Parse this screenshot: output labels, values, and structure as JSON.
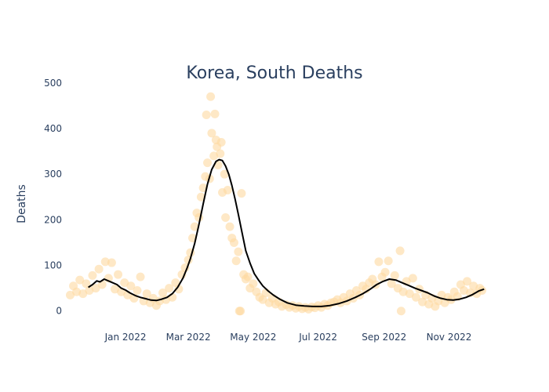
{
  "chart_data": {
    "type": "scatter",
    "title": "Korea, South Deaths",
    "xlabel": "",
    "ylabel": "Deaths",
    "x_range": [
      "2021-11-03",
      "2022-12-06"
    ],
    "ylim": [
      -40,
      510
    ],
    "grid": false,
    "legend": "none",
    "y_ticks": [
      0,
      100,
      200,
      300,
      400,
      500
    ],
    "x_ticks": [
      {
        "date": "2022-01-01",
        "label": "Jan 2022"
      },
      {
        "date": "2022-03-01",
        "label": "Mar 2022"
      },
      {
        "date": "2022-05-01",
        "label": "May 2022"
      },
      {
        "date": "2022-07-01",
        "label": "Jul 2022"
      },
      {
        "date": "2022-09-01",
        "label": "Sep 2022"
      },
      {
        "date": "2022-11-01",
        "label": "Nov 2022"
      }
    ],
    "colors": {
      "points": "#fdd9a0",
      "line": "#000000",
      "text": "#2a3f5f"
    },
    "series": [
      {
        "kind": "daily",
        "points": [
          [
            "2021-11-10",
            35
          ],
          [
            "2021-11-13",
            55
          ],
          [
            "2021-11-16",
            42
          ],
          [
            "2021-11-19",
            68
          ],
          [
            "2021-11-22",
            38
          ],
          [
            "2021-11-25",
            60
          ],
          [
            "2021-11-28",
            45
          ],
          [
            "2021-12-01",
            78
          ],
          [
            "2021-12-04",
            50
          ],
          [
            "2021-12-07",
            92
          ],
          [
            "2021-12-10",
            58
          ],
          [
            "2021-12-13",
            108
          ],
          [
            "2021-12-16",
            72
          ],
          [
            "2021-12-19",
            106
          ],
          [
            "2021-12-22",
            48
          ],
          [
            "2021-12-25",
            80
          ],
          [
            "2021-12-28",
            42
          ],
          [
            "2021-12-31",
            62
          ],
          [
            "2022-01-03",
            35
          ],
          [
            "2022-01-06",
            55
          ],
          [
            "2022-01-09",
            28
          ],
          [
            "2022-01-12",
            45
          ],
          [
            "2022-01-15",
            75
          ],
          [
            "2022-01-18",
            22
          ],
          [
            "2022-01-21",
            38
          ],
          [
            "2022-01-24",
            18
          ],
          [
            "2022-01-27",
            28
          ],
          [
            "2022-01-30",
            12
          ],
          [
            "2022-02-02",
            22
          ],
          [
            "2022-02-05",
            40
          ],
          [
            "2022-02-08",
            25
          ],
          [
            "2022-02-11",
            50
          ],
          [
            "2022-02-14",
            30
          ],
          [
            "2022-02-17",
            62
          ],
          [
            "2022-02-20",
            48
          ],
          [
            "2022-02-23",
            80
          ],
          [
            "2022-02-26",
            95
          ],
          [
            "2022-03-01",
            112
          ],
          [
            "2022-03-03",
            128
          ],
          [
            "2022-03-05",
            160
          ],
          [
            "2022-03-07",
            185
          ],
          [
            "2022-03-09",
            215
          ],
          [
            "2022-03-11",
            205
          ],
          [
            "2022-03-13",
            250
          ],
          [
            "2022-03-15",
            270
          ],
          [
            "2022-03-17",
            295
          ],
          [
            "2022-03-18",
            430
          ],
          [
            "2022-03-19",
            325
          ],
          [
            "2022-03-21",
            290
          ],
          [
            "2022-03-22",
            470
          ],
          [
            "2022-03-23",
            390
          ],
          [
            "2022-03-25",
            340
          ],
          [
            "2022-03-26",
            432
          ],
          [
            "2022-03-27",
            375
          ],
          [
            "2022-03-28",
            360
          ],
          [
            "2022-03-29",
            320
          ],
          [
            "2022-03-31",
            345
          ],
          [
            "2022-04-01",
            370
          ],
          [
            "2022-04-02",
            260
          ],
          [
            "2022-04-04",
            300
          ],
          [
            "2022-04-05",
            205
          ],
          [
            "2022-04-07",
            265
          ],
          [
            "2022-04-09",
            185
          ],
          [
            "2022-04-11",
            160
          ],
          [
            "2022-04-13",
            150
          ],
          [
            "2022-04-15",
            110
          ],
          [
            "2022-04-17",
            130
          ],
          [
            "2022-04-18",
            0
          ],
          [
            "2022-04-19",
            0
          ],
          [
            "2022-04-20",
            258
          ],
          [
            "2022-04-22",
            80
          ],
          [
            "2022-04-24",
            70
          ],
          [
            "2022-04-26",
            75
          ],
          [
            "2022-04-28",
            50
          ],
          [
            "2022-05-01",
            60
          ],
          [
            "2022-05-04",
            42
          ],
          [
            "2022-05-07",
            30
          ],
          [
            "2022-05-10",
            25
          ],
          [
            "2022-05-13",
            40
          ],
          [
            "2022-05-16",
            18
          ],
          [
            "2022-05-19",
            28
          ],
          [
            "2022-05-22",
            15
          ],
          [
            "2022-05-25",
            20
          ],
          [
            "2022-05-28",
            10
          ],
          [
            "2022-06-01",
            14
          ],
          [
            "2022-06-04",
            8
          ],
          [
            "2022-06-07",
            12
          ],
          [
            "2022-06-10",
            6
          ],
          [
            "2022-06-13",
            10
          ],
          [
            "2022-06-16",
            5
          ],
          [
            "2022-06-19",
            8
          ],
          [
            "2022-06-22",
            4
          ],
          [
            "2022-06-25",
            9
          ],
          [
            "2022-06-28",
            7
          ],
          [
            "2022-07-01",
            12
          ],
          [
            "2022-07-04",
            8
          ],
          [
            "2022-07-07",
            15
          ],
          [
            "2022-07-10",
            12
          ],
          [
            "2022-07-13",
            18
          ],
          [
            "2022-07-16",
            20
          ],
          [
            "2022-07-19",
            25
          ],
          [
            "2022-07-22",
            18
          ],
          [
            "2022-07-25",
            30
          ],
          [
            "2022-07-28",
            22
          ],
          [
            "2022-07-31",
            38
          ],
          [
            "2022-08-03",
            28
          ],
          [
            "2022-08-06",
            45
          ],
          [
            "2022-08-09",
            35
          ],
          [
            "2022-08-12",
            55
          ],
          [
            "2022-08-15",
            48
          ],
          [
            "2022-08-18",
            62
          ],
          [
            "2022-08-21",
            70
          ],
          [
            "2022-08-24",
            58
          ],
          [
            "2022-08-27",
            108
          ],
          [
            "2022-08-30",
            75
          ],
          [
            "2022-09-02",
            85
          ],
          [
            "2022-09-05",
            110
          ],
          [
            "2022-09-08",
            60
          ],
          [
            "2022-09-11",
            78
          ],
          [
            "2022-09-14",
            50
          ],
          [
            "2022-09-16",
            132
          ],
          [
            "2022-09-17",
            0
          ],
          [
            "2022-09-19",
            42
          ],
          [
            "2022-09-22",
            65
          ],
          [
            "2022-09-25",
            38
          ],
          [
            "2022-09-28",
            72
          ],
          [
            "2022-10-01",
            30
          ],
          [
            "2022-10-04",
            48
          ],
          [
            "2022-10-07",
            20
          ],
          [
            "2022-10-10",
            35
          ],
          [
            "2022-10-13",
            15
          ],
          [
            "2022-10-16",
            28
          ],
          [
            "2022-10-19",
            10
          ],
          [
            "2022-10-22",
            22
          ],
          [
            "2022-10-25",
            35
          ],
          [
            "2022-10-28",
            18
          ],
          [
            "2022-10-31",
            30
          ],
          [
            "2022-11-03",
            25
          ],
          [
            "2022-11-06",
            42
          ],
          [
            "2022-11-09",
            32
          ],
          [
            "2022-11-12",
            58
          ],
          [
            "2022-11-15",
            45
          ],
          [
            "2022-11-18",
            65
          ],
          [
            "2022-11-21",
            40
          ],
          [
            "2022-11-24",
            55
          ],
          [
            "2022-11-27",
            38
          ],
          [
            "2022-11-30",
            50
          ],
          [
            "2022-12-02",
            45
          ]
        ]
      },
      {
        "kind": "7-day average",
        "points": [
          [
            "2021-11-27",
            52
          ],
          [
            "2021-12-01",
            58
          ],
          [
            "2021-12-05",
            66
          ],
          [
            "2021-12-08",
            64
          ],
          [
            "2021-12-12",
            70
          ],
          [
            "2021-12-16",
            66
          ],
          [
            "2021-12-20",
            62
          ],
          [
            "2021-12-24",
            58
          ],
          [
            "2021-12-28",
            50
          ],
          [
            "2022-01-01",
            46
          ],
          [
            "2022-01-05",
            40
          ],
          [
            "2022-01-10",
            34
          ],
          [
            "2022-01-15",
            30
          ],
          [
            "2022-01-20",
            27
          ],
          [
            "2022-01-25",
            24
          ],
          [
            "2022-01-30",
            23
          ],
          [
            "2022-02-04",
            26
          ],
          [
            "2022-02-09",
            30
          ],
          [
            "2022-02-14",
            38
          ],
          [
            "2022-02-19",
            52
          ],
          [
            "2022-02-24",
            72
          ],
          [
            "2022-02-28",
            95
          ],
          [
            "2022-03-03",
            115
          ],
          [
            "2022-03-07",
            148
          ],
          [
            "2022-03-11",
            190
          ],
          [
            "2022-03-15",
            235
          ],
          [
            "2022-03-19",
            278
          ],
          [
            "2022-03-23",
            310
          ],
          [
            "2022-03-27",
            328
          ],
          [
            "2022-03-30",
            332
          ],
          [
            "2022-04-02",
            330
          ],
          [
            "2022-04-05",
            318
          ],
          [
            "2022-04-08",
            300
          ],
          [
            "2022-04-11",
            275
          ],
          [
            "2022-04-14",
            245
          ],
          [
            "2022-04-17",
            212
          ],
          [
            "2022-04-20",
            178
          ],
          [
            "2022-04-24",
            132
          ],
          [
            "2022-04-28",
            105
          ],
          [
            "2022-05-02",
            82
          ],
          [
            "2022-05-06",
            68
          ],
          [
            "2022-05-10",
            55
          ],
          [
            "2022-05-15",
            44
          ],
          [
            "2022-05-20",
            35
          ],
          [
            "2022-05-26",
            26
          ],
          [
            "2022-06-02",
            18
          ],
          [
            "2022-06-10",
            13
          ],
          [
            "2022-06-18",
            11
          ],
          [
            "2022-06-26",
            10
          ],
          [
            "2022-07-04",
            10
          ],
          [
            "2022-07-12",
            12
          ],
          [
            "2022-07-20",
            16
          ],
          [
            "2022-07-28",
            22
          ],
          [
            "2022-08-05",
            30
          ],
          [
            "2022-08-12",
            38
          ],
          [
            "2022-08-19",
            48
          ],
          [
            "2022-08-25",
            58
          ],
          [
            "2022-08-31",
            65
          ],
          [
            "2022-09-06",
            70
          ],
          [
            "2022-09-12",
            68
          ],
          [
            "2022-09-18",
            62
          ],
          [
            "2022-09-24",
            56
          ],
          [
            "2022-09-30",
            50
          ],
          [
            "2022-10-06",
            45
          ],
          [
            "2022-10-12",
            40
          ],
          [
            "2022-10-18",
            33
          ],
          [
            "2022-10-24",
            28
          ],
          [
            "2022-10-30",
            25
          ],
          [
            "2022-11-05",
            24
          ],
          [
            "2022-11-11",
            26
          ],
          [
            "2022-11-17",
            30
          ],
          [
            "2022-11-23",
            36
          ],
          [
            "2022-11-29",
            44
          ],
          [
            "2022-12-04",
            48
          ]
        ]
      }
    ]
  }
}
